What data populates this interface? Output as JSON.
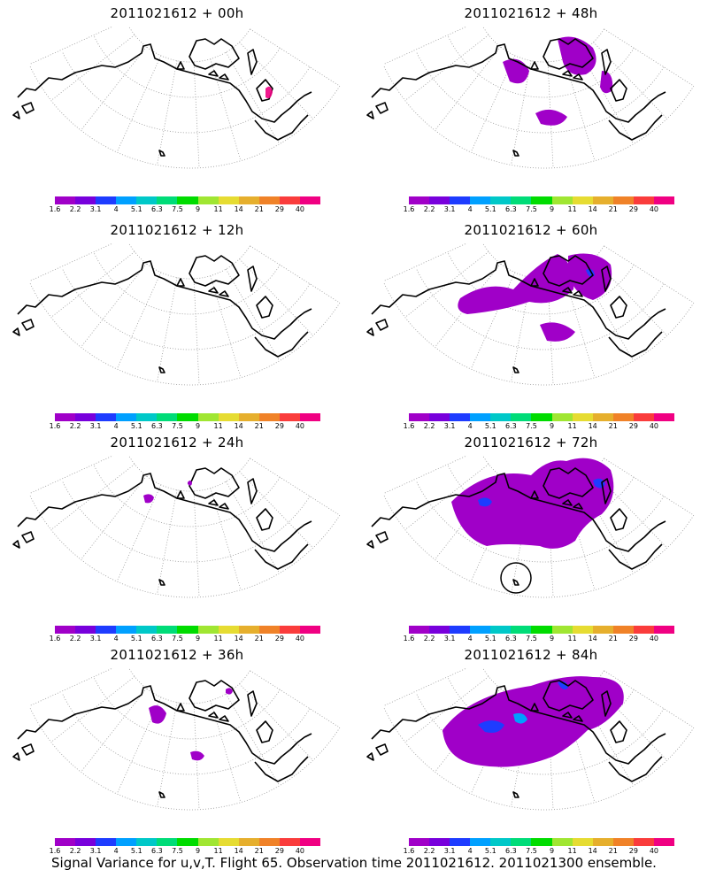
{
  "footer": "Signal Variance for u,v,T. Flight 65. Observation time 2011021612. 2011021300 ensemble.",
  "colorbar": {
    "labels": [
      "1.6",
      "2.2",
      "3.1",
      "4",
      "5.1",
      "6.3",
      "7.5",
      "9",
      "11",
      "14",
      "21",
      "29",
      "40"
    ],
    "colors": [
      "#a000c8",
      "#7800dc",
      "#1e3cff",
      "#00a0ff",
      "#00c8c8",
      "#00dc78",
      "#00dc00",
      "#a0e632",
      "#e6dc32",
      "#e6af2d",
      "#f08228",
      "#fa3c3c",
      "#f00082"
    ]
  },
  "panels": [
    {
      "id": "p00",
      "title": "2011021612 + 00h",
      "col": 0,
      "row": 0
    },
    {
      "id": "p12",
      "title": "2011021612 + 12h",
      "col": 0,
      "row": 1
    },
    {
      "id": "p24",
      "title": "2011021612 + 24h",
      "col": 0,
      "row": 2
    },
    {
      "id": "p36",
      "title": "2011021612 + 36h",
      "col": 0,
      "row": 3
    },
    {
      "id": "p48",
      "title": "2011021612 + 48h",
      "col": 1,
      "row": 0
    },
    {
      "id": "p60",
      "title": "2011021612 + 60h",
      "col": 1,
      "row": 1
    },
    {
      "id": "p72",
      "title": "2011021612 + 72h",
      "col": 1,
      "row": 2
    },
    {
      "id": "p84",
      "title": "2011021612 + 84h",
      "col": 1,
      "row": 3
    }
  ]
}
